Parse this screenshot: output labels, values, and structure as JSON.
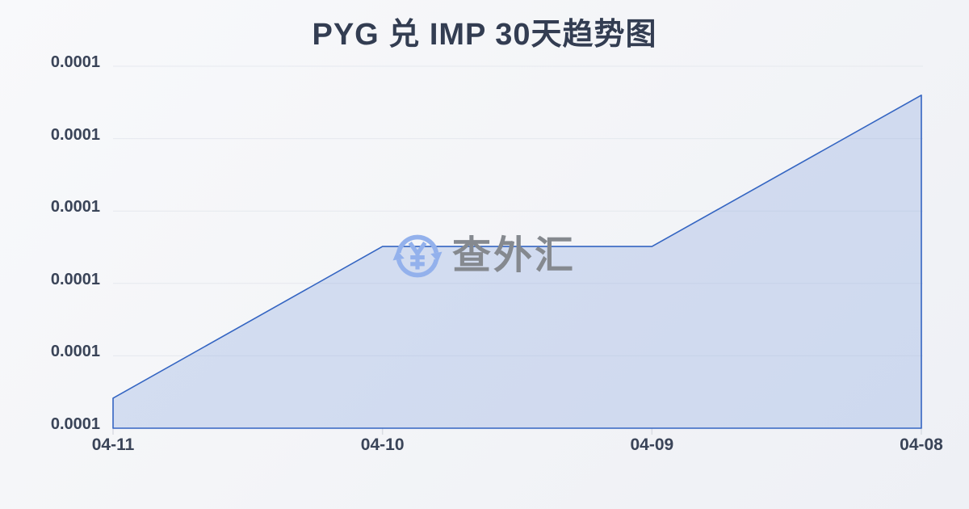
{
  "title": "PYG 兑 IMP 30天趋势图",
  "watermark": {
    "icon": "yen-refresh-icon",
    "text": "查外汇"
  },
  "chart_data": {
    "type": "area",
    "title": "PYG 兑 IMP 30天趋势图",
    "x": [
      "04-11",
      "04-10",
      "04-09",
      "04-08"
    ],
    "series": [
      {
        "name": "PYG/IMP",
        "values_axis_fraction": [
          0.083,
          0.502,
          0.502,
          0.92
        ],
        "display_values": [
          "0.0001",
          "0.0001",
          "0.0001",
          "0.0001"
        ]
      }
    ],
    "y_tick_labels": [
      "0.0001",
      "0.0001",
      "0.0001",
      "0.0001",
      "0.0001",
      "0.0001"
    ],
    "xlabel": "",
    "ylabel": "",
    "grid": true,
    "legend": false,
    "colors": {
      "line": "#3465c2",
      "fill": "rgba(92,132,214,0.22)",
      "grid": "#e5e8ee",
      "tick": "#d9dce3",
      "axis_text": "#3a4458",
      "title_text": "#333d52",
      "watermark_icon": "#93b1ec",
      "watermark_text": "#85898f"
    }
  }
}
